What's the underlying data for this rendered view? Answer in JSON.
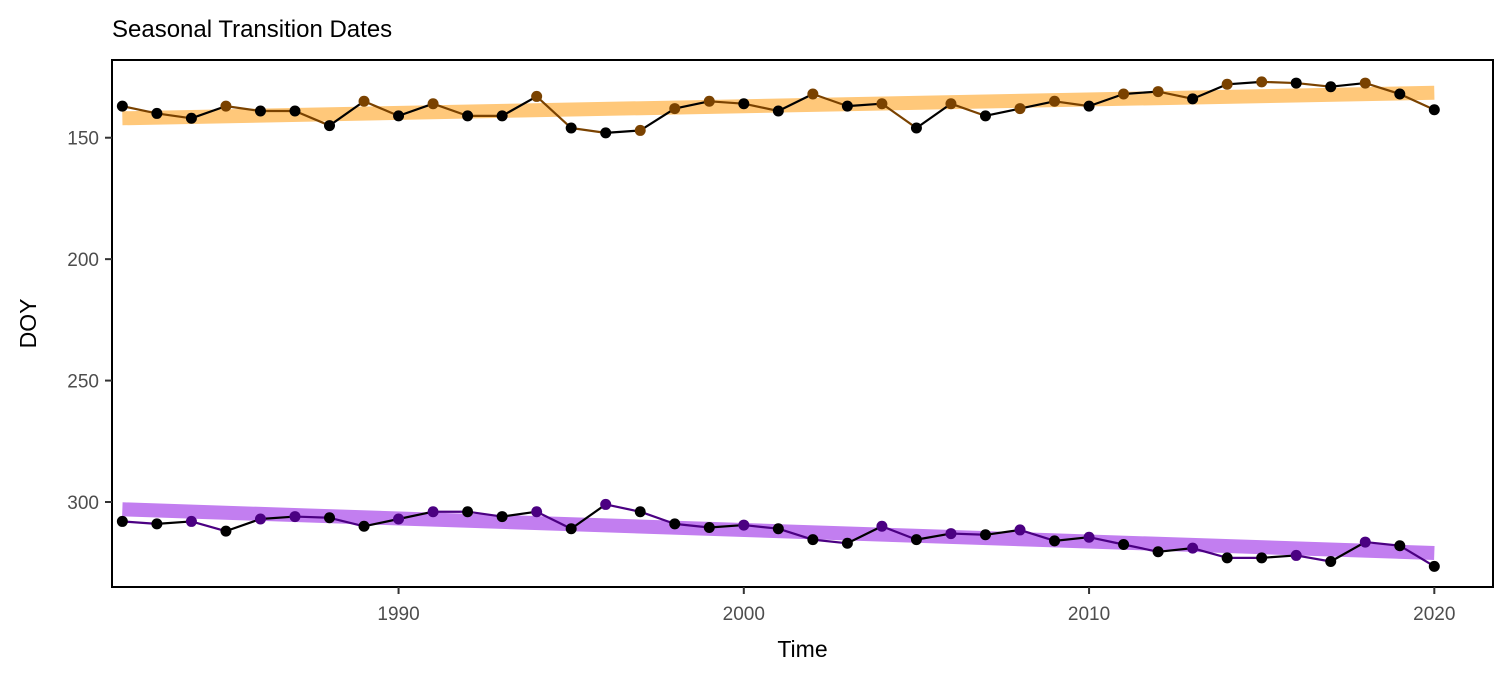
{
  "chart_data": {
    "type": "line",
    "title": "Seasonal Transition Dates",
    "xlabel": "Time",
    "ylabel": "DOY",
    "xlim": [
      1981.7,
      2021.7
    ],
    "ylim": [
      335,
      118
    ],
    "y_reversed": true,
    "x_ticks": [
      1990,
      2000,
      2010,
      2020
    ],
    "y_ticks": [
      150,
      200,
      250,
      300
    ],
    "grid": false,
    "legend": "none",
    "x": [
      1982,
      1983,
      1984,
      1985,
      1986,
      1987,
      1988,
      1989,
      1990,
      1991,
      1992,
      1993,
      1994,
      1995,
      1996,
      1997,
      1998,
      1999,
      2000,
      2001,
      2002,
      2003,
      2004,
      2005,
      2006,
      2007,
      2008,
      2009,
      2010,
      2011,
      2012,
      2013,
      2014,
      2015,
      2016,
      2017,
      2018,
      2019,
      2020
    ],
    "series": [
      {
        "color": "#7a4200",
        "trend_color": "#ffc87a",
        "trend": [
          [
            1982,
            142
          ],
          [
            2020,
            131.5
          ]
        ],
        "values": [
          137,
          140,
          142,
          137,
          139,
          139,
          145,
          135,
          141,
          136,
          141,
          141,
          133,
          146,
          148,
          147,
          138,
          135,
          136,
          139,
          132,
          137,
          136,
          146,
          136,
          141,
          138,
          135,
          137,
          132,
          131,
          134,
          128,
          127,
          127.5,
          129,
          127.5,
          132,
          138.5
        ]
      },
      {
        "color": "#4b0082",
        "trend_color": "#c27ef0",
        "trend": [
          [
            1982,
            303
          ],
          [
            2020,
            321
          ]
        ],
        "values": [
          308,
          309,
          308,
          312,
          307,
          306,
          306.5,
          310,
          307,
          304,
          304,
          306,
          304,
          311,
          301,
          304,
          309,
          310.5,
          309.5,
          311,
          315.5,
          317,
          310,
          315.5,
          313,
          313.5,
          311.5,
          316,
          314.5,
          317.5,
          320.5,
          319,
          323,
          323,
          322,
          324.5,
          316.5,
          318,
          326.5
        ]
      }
    ]
  }
}
